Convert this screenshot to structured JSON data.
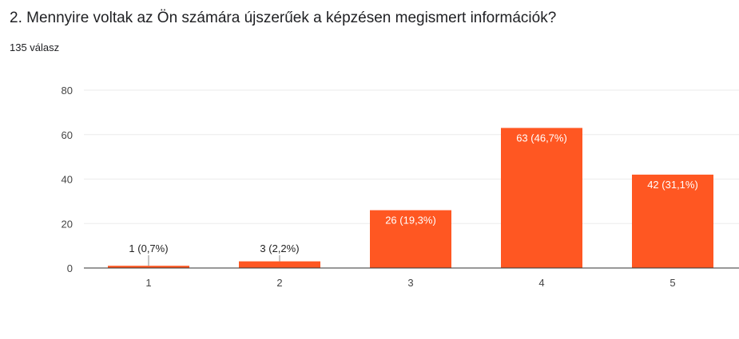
{
  "question": {
    "title": "2. Mennyire voltak az Ön számára újszerűek a képzésen megismert információk?",
    "response_count": "135 válasz"
  },
  "colors": {
    "bar": "#ff5722",
    "gridline": "#ebebeb",
    "axis": "#333333",
    "label_inside": "#ffffff",
    "label_outside": "#222222"
  },
  "chart_data": {
    "type": "bar",
    "categories": [
      "1",
      "2",
      "3",
      "4",
      "5"
    ],
    "values": [
      1,
      3,
      26,
      63,
      42
    ],
    "data_labels": [
      "1 (0,7%)",
      "3 (2,2%)",
      "26 (19,3%)",
      "63 (46,7%)",
      "42 (31,1%)"
    ],
    "yticks": [
      0,
      20,
      40,
      60,
      80
    ],
    "ylim": [
      0,
      80
    ],
    "grid": true,
    "legend": "none"
  }
}
